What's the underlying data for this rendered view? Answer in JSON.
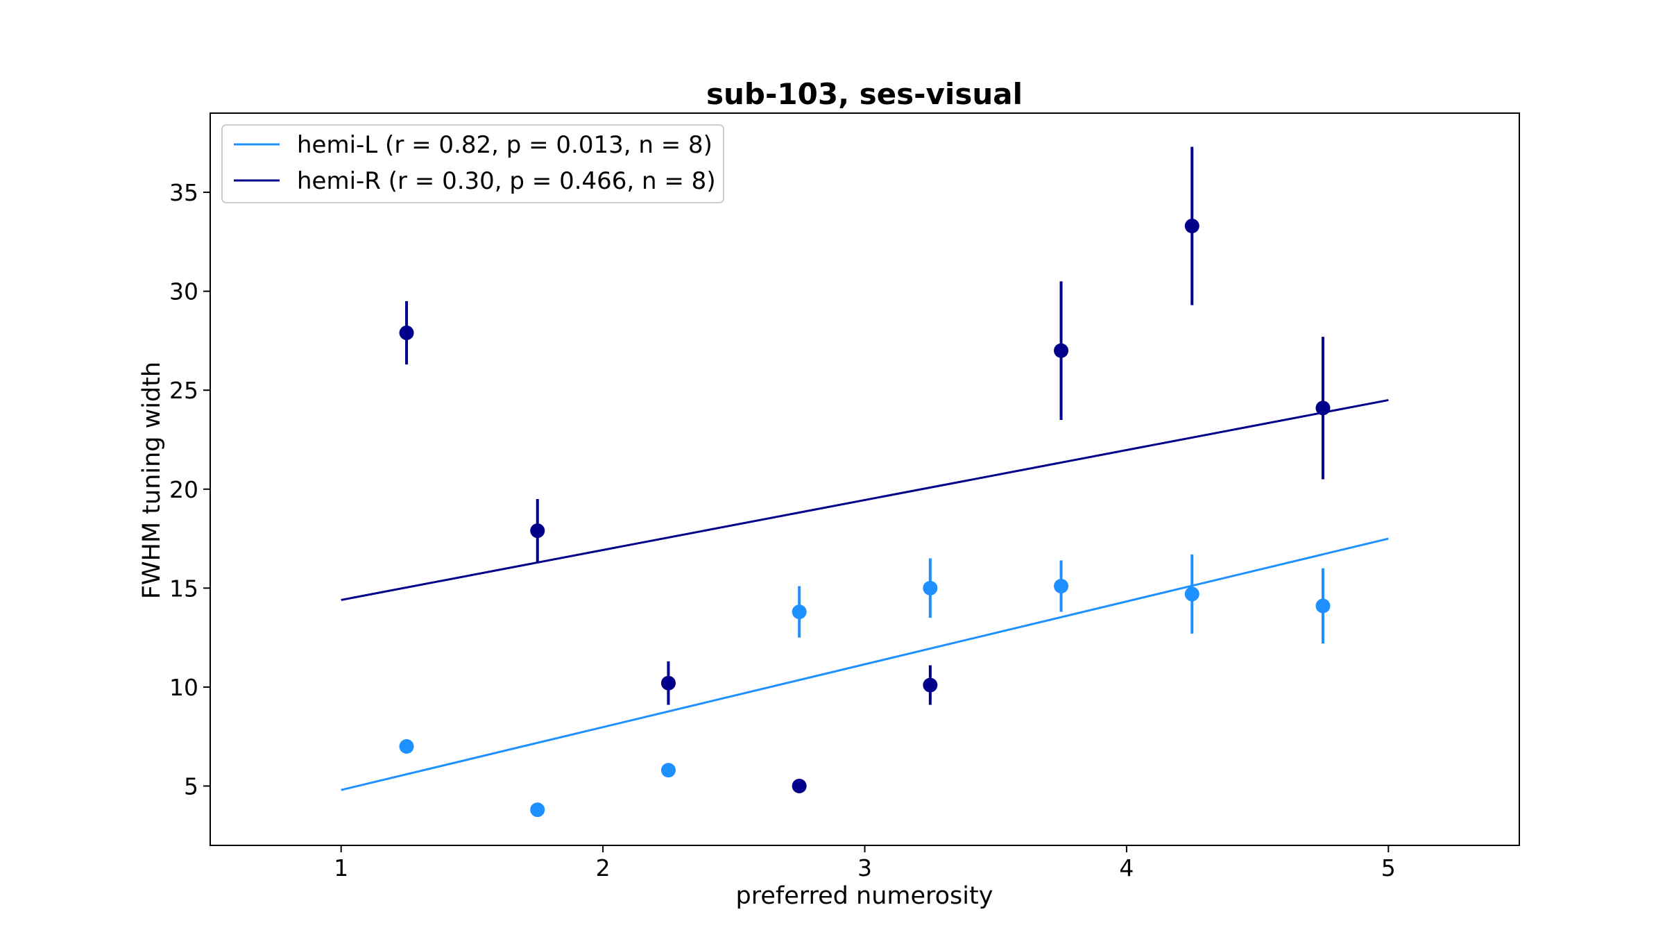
{
  "chart_data": {
    "type": "scatter",
    "title": "sub-103, ses-visual",
    "xlabel": "preferred numerosity",
    "ylabel": "FWHM tuning width",
    "xlim": [
      0.5,
      5.5
    ],
    "ylim": [
      2,
      39
    ],
    "xticks": [
      1,
      2,
      3,
      4,
      5
    ],
    "yticks": [
      5,
      10,
      15,
      20,
      25,
      30,
      35
    ],
    "grid": false,
    "legend_position": "top-left",
    "series": [
      {
        "name": "hemi-L (r = 0.82, p = 0.013, n = 8)",
        "color": "#1e90ff",
        "x": [
          1.25,
          1.75,
          2.25,
          2.75,
          3.25,
          3.75,
          4.25,
          4.75
        ],
        "y": [
          7.0,
          3.8,
          5.8,
          13.8,
          15.0,
          15.1,
          14.7,
          14.1
        ],
        "yerr": [
          0.2,
          0.2,
          0.35,
          1.3,
          1.5,
          1.3,
          2.0,
          1.9
        ],
        "fit": {
          "x": [
            1,
            5
          ],
          "y": [
            4.8,
            17.5
          ]
        }
      },
      {
        "name": "hemi-R (r = 0.30, p = 0.466, n = 8)",
        "color": "#00008b",
        "x": [
          1.25,
          1.75,
          2.25,
          2.75,
          3.25,
          3.75,
          4.25,
          4.75
        ],
        "y": [
          27.9,
          17.9,
          10.2,
          5.0,
          10.1,
          27.0,
          33.3,
          24.1
        ],
        "yerr": [
          1.6,
          1.6,
          1.1,
          0.2,
          1.0,
          3.5,
          4.0,
          3.6
        ],
        "fit": {
          "x": [
            1,
            5
          ],
          "y": [
            14.4,
            24.5
          ]
        }
      }
    ]
  }
}
